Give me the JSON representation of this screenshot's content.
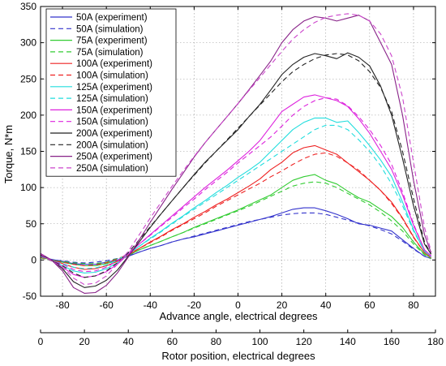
{
  "chart_data": {
    "type": "line",
    "title": "",
    "ylabel": "Torque, N*m",
    "xlabel_top": "Advance angle, electrical degrees",
    "xlabel_bottom": "Rotor position, electrical degrees",
    "ylim": [
      -50,
      350
    ],
    "yticks": [
      -50,
      0,
      50,
      100,
      150,
      200,
      250,
      300,
      350
    ],
    "xlim": [
      0,
      180
    ],
    "xticks_bottom": [
      0,
      20,
      40,
      60,
      80,
      100,
      120,
      140,
      160,
      180
    ],
    "advance_xlim": [
      -90,
      90
    ],
    "xticks_top": [
      -80,
      -60,
      -40,
      -20,
      0,
      20,
      40,
      60,
      80
    ],
    "grid": true,
    "legend_position": "top-left",
    "x": [
      0,
      5,
      10,
      15,
      20,
      25,
      30,
      35,
      40,
      45,
      50,
      55,
      60,
      65,
      70,
      75,
      80,
      85,
      90,
      95,
      100,
      105,
      110,
      115,
      120,
      125,
      130,
      135,
      140,
      145,
      150,
      155,
      160,
      165,
      170,
      175,
      178
    ],
    "series": [
      {
        "name": "50A (experiment)",
        "color": "#3333cc",
        "dash": false,
        "values": [
          4,
          1,
          -2,
          -5,
          -6,
          -6,
          -3,
          0,
          5,
          11,
          16,
          20,
          25,
          29,
          32,
          36,
          40,
          44,
          48,
          52,
          56,
          60,
          65,
          70,
          72,
          72,
          68,
          63,
          57,
          50,
          48,
          44,
          40,
          28,
          16,
          5,
          2
        ]
      },
      {
        "name": "50A (simulation)",
        "color": "#3333cc",
        "dash": true,
        "values": [
          3,
          0,
          -1,
          -3,
          -4,
          -3,
          -1,
          2,
          6,
          11,
          16,
          20,
          25,
          29,
          33,
          37,
          41,
          45,
          49,
          53,
          56,
          59,
          62,
          64,
          65,
          65,
          63,
          59,
          55,
          51,
          47,
          42,
          36,
          26,
          15,
          5,
          2
        ]
      },
      {
        "name": "75A (experiment)",
        "color": "#33cc33",
        "dash": false,
        "values": [
          4,
          0,
          -3,
          -6,
          -8,
          -8,
          -5,
          -1,
          6,
          14,
          20,
          26,
          32,
          38,
          45,
          51,
          57,
          63,
          69,
          76,
          83,
          90,
          100,
          110,
          115,
          118,
          110,
          105,
          95,
          86,
          80,
          70,
          60,
          45,
          25,
          8,
          3
        ]
      },
      {
        "name": "75A (simulation)",
        "color": "#33cc33",
        "dash": true,
        "values": [
          3,
          -1,
          -2,
          -4,
          -5,
          -5,
          -3,
          2,
          7,
          14,
          20,
          26,
          32,
          38,
          44,
          50,
          56,
          62,
          68,
          74,
          81,
          88,
          95,
          102,
          106,
          108,
          106,
          100,
          92,
          84,
          76,
          66,
          54,
          40,
          22,
          7,
          2
        ]
      },
      {
        "name": "100A (experiment)",
        "color": "#ee2222",
        "dash": false,
        "values": [
          5,
          0,
          -5,
          -10,
          -13,
          -12,
          -8,
          -2,
          7,
          16,
          25,
          33,
          42,
          50,
          59,
          67,
          76,
          84,
          93,
          102,
          112,
          125,
          135,
          148,
          155,
          158,
          152,
          146,
          134,
          122,
          110,
          96,
          80,
          58,
          32,
          10,
          4
        ]
      },
      {
        "name": "100A (simulation)",
        "color": "#ee2222",
        "dash": true,
        "values": [
          4,
          -1,
          -3,
          -6,
          -8,
          -7,
          -4,
          1,
          8,
          16,
          24,
          32,
          41,
          49,
          57,
          65,
          74,
          82,
          90,
          98,
          106,
          115,
          123,
          132,
          140,
          146,
          148,
          143,
          134,
          124,
          110,
          96,
          78,
          57,
          31,
          10,
          3
        ]
      },
      {
        "name": "125A (experiment)",
        "color": "#22dddd",
        "dash": false,
        "values": [
          6,
          0,
          -8,
          -15,
          -18,
          -17,
          -12,
          -4,
          8,
          19,
          30,
          40,
          51,
          61,
          72,
          82,
          93,
          103,
          114,
          124,
          135,
          150,
          165,
          180,
          190,
          196,
          196,
          190,
          192,
          176,
          158,
          138,
          115,
          80,
          42,
          12,
          5
        ]
      },
      {
        "name": "125A (simulation)",
        "color": "#22dddd",
        "dash": true,
        "values": [
          5,
          -1,
          -5,
          -10,
          -12,
          -11,
          -7,
          0,
          9,
          19,
          29,
          39,
          50,
          60,
          70,
          80,
          90,
          100,
          110,
          120,
          130,
          140,
          150,
          160,
          170,
          180,
          186,
          186,
          180,
          166,
          150,
          130,
          105,
          75,
          40,
          12,
          4
        ]
      },
      {
        "name": "150A (experiment)",
        "color": "#dd22dd",
        "dash": false,
        "values": [
          7,
          0,
          -10,
          -20,
          -24,
          -22,
          -16,
          -6,
          8,
          22,
          35,
          48,
          61,
          74,
          87,
          100,
          112,
          124,
          137,
          150,
          165,
          185,
          205,
          215,
          225,
          228,
          224,
          220,
          212,
          195,
          175,
          150,
          125,
          90,
          48,
          14,
          6
        ]
      },
      {
        "name": "150A (simulation)",
        "color": "#dd22dd",
        "dash": true,
        "values": [
          6,
          -1,
          -6,
          -13,
          -16,
          -15,
          -10,
          -1,
          10,
          22,
          34,
          47,
          59,
          72,
          84,
          97,
          109,
          121,
          134,
          146,
          158,
          170,
          185,
          200,
          212,
          220,
          224,
          222,
          213,
          198,
          180,
          158,
          132,
          94,
          50,
          14,
          5
        ]
      },
      {
        "name": "200A (experiment)",
        "color": "#222222",
        "dash": false,
        "values": [
          8,
          0,
          -12,
          -30,
          -38,
          -36,
          -28,
          -14,
          5,
          25,
          45,
          64,
          82,
          100,
          118,
          135,
          150,
          165,
          180,
          198,
          215,
          235,
          256,
          270,
          280,
          285,
          282,
          278,
          286,
          280,
          268,
          240,
          200,
          140,
          75,
          22,
          8
        ]
      },
      {
        "name": "200A (simulation)",
        "color": "#222222",
        "dash": true,
        "values": [
          7,
          -1,
          -8,
          -18,
          -24,
          -22,
          -15,
          -4,
          10,
          28,
          46,
          64,
          82,
          100,
          117,
          134,
          150,
          166,
          182,
          198,
          214,
          230,
          246,
          260,
          270,
          278,
          283,
          285,
          283,
          275,
          260,
          238,
          205,
          150,
          85,
          25,
          8
        ]
      },
      {
        "name": "250A (experiment)",
        "color": "#882288",
        "dash": false,
        "values": [
          9,
          0,
          -15,
          -38,
          -46,
          -45,
          -35,
          -18,
          4,
          28,
          52,
          75,
          98,
          120,
          142,
          162,
          180,
          198,
          216,
          235,
          255,
          275,
          300,
          318,
          330,
          336,
          334,
          330,
          334,
          338,
          330,
          300,
          270,
          200,
          110,
          35,
          10
        ]
      },
      {
        "name": "250A (simulation)",
        "color": "#cc44cc",
        "dash": true,
        "values": [
          8,
          -1,
          -10,
          -25,
          -34,
          -32,
          -22,
          -6,
          12,
          35,
          58,
          80,
          102,
          123,
          143,
          162,
          180,
          198,
          216,
          234,
          252,
          270,
          288,
          305,
          318,
          328,
          335,
          338,
          340,
          338,
          330,
          312,
          282,
          225,
          135,
          45,
          12
        ]
      }
    ]
  }
}
